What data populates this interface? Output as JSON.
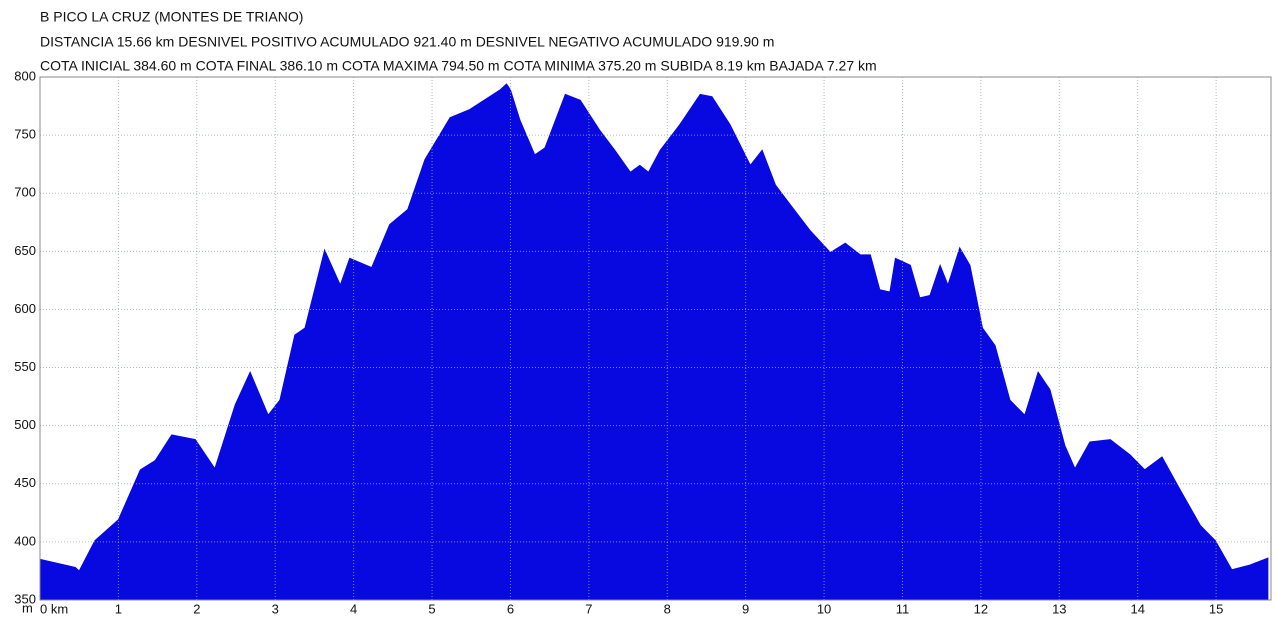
{
  "chart_data": {
    "type": "area",
    "title": "B PICO LA CRUZ (MONTES DE TRIANO)",
    "subtitle_lines": [
      "DISTANCIA 15.66 km DESNIVEL POSITIVO ACUMULADO 921.40 m DESNIVEL NEGATIVO ACUMULADO 919.90 m",
      "COTA INICIAL 384.60 m COTA FINAL 386.10 m COTA MAXIMA 794.50 m COTA MINIMA 375.20 m SUBIDA 8.19 km BAJADA 7.27 km"
    ],
    "y_label": "m",
    "color": "#0808e0",
    "grid": true,
    "x": [
      0,
      0.45,
      0.5,
      0.7,
      1.0,
      1.28,
      1.47,
      1.68,
      1.98,
      2.23,
      2.49,
      2.68,
      2.91,
      3.06,
      3.25,
      3.38,
      3.63,
      3.83,
      3.95,
      4.23,
      4.46,
      4.69,
      4.91,
      5.23,
      5.48,
      5.87,
      5.95,
      6.0,
      6.12,
      6.31,
      6.44,
      6.7,
      6.89,
      7.14,
      7.33,
      7.53,
      7.65,
      7.76,
      7.91,
      8.16,
      8.42,
      8.57,
      8.8,
      9.06,
      9.21,
      9.38,
      9.57,
      9.82,
      10.08,
      10.27,
      10.46,
      10.59,
      10.71,
      10.84,
      10.91,
      11.1,
      11.22,
      11.35,
      11.48,
      11.58,
      11.73,
      11.86,
      12.02,
      12.18,
      12.37,
      12.56,
      12.73,
      12.88,
      13.07,
      13.2,
      13.39,
      13.65,
      13.9,
      14.09,
      14.31,
      14.54,
      14.8,
      14.99,
      15.2,
      15.43,
      15.66
    ],
    "values": [
      385,
      378,
      375,
      401,
      419,
      462,
      470,
      492,
      488,
      463,
      518,
      546,
      509,
      522,
      578,
      584,
      651,
      621,
      644,
      636,
      673,
      686,
      729,
      765,
      772,
      789,
      794,
      789,
      763,
      733,
      739,
      785,
      780,
      754,
      737,
      718,
      724,
      718,
      737,
      759,
      785,
      783,
      759,
      724,
      737,
      707,
      690,
      668,
      649,
      657,
      647,
      647,
      617,
      615,
      644,
      638,
      610,
      612,
      638,
      621,
      653,
      638,
      584,
      569,
      522,
      509,
      546,
      531,
      483,
      463,
      486,
      488,
      475,
      462,
      473,
      445,
      414,
      401,
      376,
      380,
      386
    ],
    "xlim": [
      0,
      15.7
    ],
    "ylim": [
      350,
      800
    ],
    "xticks": [
      {
        "value": 0,
        "label": "0 km"
      },
      1,
      2,
      3,
      4,
      5,
      6,
      7,
      8,
      9,
      10,
      11,
      12,
      13,
      14,
      15
    ],
    "yticks": [
      350,
      400,
      450,
      500,
      550,
      600,
      650,
      700,
      750,
      800
    ]
  }
}
